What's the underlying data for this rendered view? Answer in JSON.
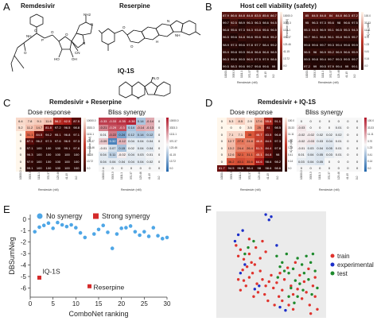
{
  "panels": {
    "A": {
      "letter": "A",
      "molecules": [
        "Remdesivir",
        "Reserpine",
        "IQ-1S"
      ],
      "atom_labels": {
        "O": "O",
        "N": "N",
        "NH": "NH",
        "NH2": "NH2",
        "P": "P",
        "HO": "HO",
        "OH": "OH",
        "CN": "CN",
        "O_": "O",
        "H": "H",
        "NO": "N,O"
      }
    },
    "B": {
      "letter": "B",
      "title": "Host cell viability (safety)",
      "xlabel": "Remdesivir (nM)",
      "ylabel_left": "Reserpine (nM)",
      "ylabel_right": "IQ-1S (nM)",
      "left_values": [
        [
          87.9,
          86.6,
          84.8,
          84.8,
          83.5,
          85.6,
          86.7
        ],
        [
          99.7,
          92.5,
          98.9,
          96.3,
          96.3,
          98.6,
          94.5
        ],
        [
          96.8,
          95.6,
          97.3,
          94.3,
          93.6,
          95.6,
          96.5
        ],
        [
          96.5,
          99.6,
          94.8,
          96.6,
          95.6,
          96.6,
          95.2
        ],
        [
          98.9,
          97.3,
          99.6,
          97.8,
          97.7,
          98.4,
          99.2
        ],
        [
          95.9,
          99.8,
          99.9,
          96.8,
          96.8,
          96.8,
          98.5
        ],
        [
          96.3,
          99.8,
          99.5,
          96.5,
          97.5,
          97.9,
          98.6
        ],
        [
          99.5,
          98.3,
          99.6,
          99.7,
          99.8,
          99.6,
          99.0
        ]
      ],
      "right_values": [
        [
          85.0,
          84.5,
          84.8,
          84.0,
          84.8,
          86.3,
          87.2
        ],
        [
          95.0,
          96.3,
          97.3,
          95.6,
          98.0,
          96.6,
          97.5
        ],
        [
          95.3,
          94.5,
          96.9,
          95.1,
          96.5,
          95.3,
          94.3
        ],
        [
          96.7,
          96.1,
          96.8,
          96.1,
          95.8,
          96.5,
          95.7
        ],
        [
          99.8,
          99.6,
          99.7,
          99.3,
          99.4,
          99.8,
          99.9
        ],
        [
          96.5,
          96.0,
          96.9,
          95.2,
          96.9,
          96.6,
          95.9
        ],
        [
          99.5,
          99.8,
          99.4,
          99.7,
          99.3,
          99.5,
          99.7
        ],
        [
          97.2,
          99.0,
          99.5,
          97.9,
          99.4,
          99.0,
          99.1
        ]
      ],
      "x_ticks": [
        "10000.0",
        "3333.3",
        "1111.1",
        "370.37",
        "123.46",
        "41.15",
        "0.0"
      ],
      "y_ticks_left": [
        "10000.0",
        "3333.3",
        "1111.1",
        "370.37",
        "123.46",
        "41.15",
        "13.72",
        "0.0"
      ],
      "y_ticks_right": [
        "100.0",
        "33.33",
        "11.11",
        "3.70",
        "1.23",
        "0.41",
        "0.14",
        "0.0"
      ]
    },
    "C": {
      "letter": "C",
      "title": "Remdesivir + Reserpine",
      "dose_label": "Dose response",
      "bliss_label": "Bliss synergy",
      "xlabel": "Remdesivir (nM)",
      "ylabel": "Reserpine (nM)",
      "dose_values": [
        [
          6.4,
          7.8,
          9.1,
          11.6,
          56.2,
          62.5,
          87.5
        ],
        [
          5.2,
          11.2,
          14.7,
          81.8,
          97.2,
          96.5,
          98.8
        ],
        [
          0.0,
          31.1,
          84.5,
          94.2,
          95.1,
          96.8,
          97.1
        ],
        [
          0.0,
          87.1,
          96.2,
          97.3,
          97.6,
          96.9,
          97.3
        ],
        [
          0.0,
          97.1,
          100,
          100,
          100,
          99.1,
          97.8
        ],
        [
          0.0,
          96.3,
          100,
          100,
          100,
          100,
          100
        ],
        [
          0.0,
          97.9,
          100,
          100,
          100,
          100,
          100
        ],
        [
          0.0,
          99.1,
          100,
          100,
          100,
          100,
          100
        ]
      ],
      "bliss_values": [
        [
          -0.33,
          -0.33,
          -0.35,
          -0.38,
          0.14,
          -0.14,
          0.0
        ],
        [
          -0.21,
          -0.29,
          -0.3,
          0.14,
          -0.14,
          -0.13,
          0.0
        ],
        [
          0.01,
          -0.22,
          0.24,
          0.12,
          0.14,
          0.12,
          0.0
        ],
        [
          -0.09,
          0.32,
          -0.12,
          0.04,
          0.04,
          0.04,
          0.0
        ],
        [
          -0.01,
          0.07,
          0.15,
          0.02,
          0.04,
          0.04,
          0.0
        ],
        [
          0.04,
          0.11,
          -0.02,
          0.04,
          0.03,
          0.01,
          0.0
        ],
        [
          0.04,
          0.04,
          0.04,
          0.04,
          0.04,
          0.02,
          0.0
        ],
        [
          0.0,
          0.0,
          0.0,
          0.0,
          0.0,
          0.0,
          0.0
        ]
      ]
    },
    "D": {
      "letter": "D",
      "title": "Remdesivir + IQ-1S",
      "dose_label": "Dose response",
      "bliss_label": "Bliss synergy",
      "xlabel": "Remdesivir (nM)",
      "ylabel": "IQ-1S (nM)",
      "dose_values": [
        [
          0.0,
          5.3,
          8.5,
          2.9,
          17.6,
          55.8,
          91.1
        ],
        [
          0.0,
          0.0,
          0.0,
          3.5,
          25.0,
          81.0,
          98.5
        ],
        [
          0.0,
          7.1,
          7.1,
          35.0,
          46.7,
          83.5,
          96.8
        ],
        [
          0.0,
          12.7,
          27.9,
          24.8,
          46.8,
          84.5,
          97.3
        ],
        [
          0.0,
          13.2,
          24.4,
          26.4,
          51.3,
          84.4,
          97.8
        ],
        [
          0.0,
          12.6,
          32.1,
          31.1,
          45.1,
          84.8,
          98.0
        ],
        [
          0.0,
          36.2,
          40.1,
          35.6,
          64.6,
          98.6,
          98.2
        ],
        [
          81.7,
          94.5,
          96.9,
          96.4,
          98.0,
          98.6,
          98.6
        ]
      ],
      "bliss_values": [
        [
          0.0,
          0.0,
          0.0,
          0.0,
          0.0,
          0.0,
          0.0
        ],
        [
          -0.03,
          0.0,
          0.0,
          0.0,
          0.01,
          0.0,
          0.0
        ],
        [
          -0.02,
          -0.02,
          0.02,
          0.02,
          0.02,
          0.0,
          0.0
        ],
        [
          -0.02,
          -0.03,
          0.03,
          0.04,
          0.01,
          0.0,
          0.0
        ],
        [
          -0.01,
          0.03,
          0.04,
          0.05,
          0.01,
          0.0,
          0.0
        ],
        [
          0.01,
          0.04,
          0.05,
          0.03,
          0.01,
          0.0,
          0.0
        ],
        [
          0.03,
          0.04,
          0.05,
          0.0,
          0.0,
          0.0,
          0.0
        ],
        [
          0.0,
          0.0,
          0.0,
          0.0,
          0.0,
          0.0,
          0.0
        ]
      ]
    },
    "E": {
      "letter": "E"
    },
    "F": {
      "letter": "F"
    }
  },
  "chart_data": [
    {
      "type": "scatter",
      "panel": "E",
      "xlabel": "ComboNet ranking",
      "ylabel": "DBSumNeg",
      "xlim": [
        0,
        30
      ],
      "ylim": [
        -6.8,
        0.4
      ],
      "x_ticks": [
        0,
        5,
        10,
        15,
        20,
        25,
        30
      ],
      "y_ticks": [
        0,
        -1,
        -2,
        -3,
        -4,
        -5,
        -6
      ],
      "legend": {
        "no_synergy": "No synergy",
        "strong_synergy": "Strong synergy",
        "placement": "top"
      },
      "colors": {
        "no_synergy": "#4ea6e6",
        "strong_synergy": "#d42a2a"
      },
      "series": [
        {
          "name": "No synergy",
          "points": [
            [
              1,
              -1.1
            ],
            [
              2,
              -0.7
            ],
            [
              3,
              -0.55
            ],
            [
              4,
              -0.35
            ],
            [
              5,
              -0.8
            ],
            [
              6,
              -0.3
            ],
            [
              7,
              -0.5
            ],
            [
              8,
              -0.65
            ],
            [
              9,
              -0.5
            ],
            [
              10,
              -0.75
            ],
            [
              11,
              -1.2
            ],
            [
              12,
              -1.6
            ],
            [
              14,
              -1.3
            ],
            [
              15,
              -0.9
            ],
            [
              16,
              -0.55
            ],
            [
              17,
              -1.15
            ],
            [
              18,
              -2.55
            ],
            [
              19,
              -1.3
            ],
            [
              20,
              -0.8
            ],
            [
              21,
              -0.75
            ],
            [
              22,
              -0.6
            ],
            [
              23,
              -1.1
            ],
            [
              24,
              -1.4
            ],
            [
              25,
              -1.1
            ],
            [
              26,
              -1.5
            ],
            [
              27,
              -0.75
            ],
            [
              28,
              -1.45
            ],
            [
              29,
              -1.7
            ],
            [
              30,
              -1.6
            ]
          ]
        },
        {
          "name": "Strong synergy",
          "points": [
            [
              2,
              -5.1
            ],
            [
              13,
              -5.85
            ]
          ],
          "labels": [
            "IQ-1S",
            "Reserpine"
          ]
        }
      ]
    },
    {
      "type": "scatter",
      "panel": "F",
      "legend": {
        "train": "train",
        "experimental": "experimental",
        "test": "test",
        "placement": "right"
      },
      "colors": {
        "train": "#e0332d",
        "experimental": "#1c2fc9",
        "test": "#1e8a2c"
      },
      "series": [
        {
          "name": "train",
          "points": [
            [
              0.18,
              0.68
            ],
            [
              0.2,
              0.58
            ],
            [
              0.22,
              0.64
            ],
            [
              0.25,
              0.55
            ],
            [
              0.3,
              0.6
            ],
            [
              0.32,
              0.52
            ],
            [
              0.28,
              0.48
            ],
            [
              0.24,
              0.45
            ],
            [
              0.35,
              0.5
            ],
            [
              0.33,
              0.42
            ],
            [
              0.4,
              0.44
            ],
            [
              0.42,
              0.36
            ],
            [
              0.37,
              0.32
            ],
            [
              0.3,
              0.38
            ],
            [
              0.27,
              0.3
            ],
            [
              0.25,
              0.35
            ],
            [
              0.45,
              0.3
            ],
            [
              0.5,
              0.4
            ],
            [
              0.48,
              0.34
            ],
            [
              0.52,
              0.28
            ],
            [
              0.55,
              0.33
            ],
            [
              0.6,
              0.26
            ],
            [
              0.62,
              0.36
            ],
            [
              0.58,
              0.42
            ],
            [
              0.65,
              0.47
            ],
            [
              0.68,
              0.3
            ],
            [
              0.7,
              0.22
            ],
            [
              0.74,
              0.27
            ],
            [
              0.78,
              0.18
            ],
            [
              0.82,
              0.24
            ],
            [
              0.85,
              0.12
            ],
            [
              0.8,
              0.34
            ],
            [
              0.88,
              0.3
            ],
            [
              0.9,
              0.2
            ],
            [
              0.76,
              0.4
            ],
            [
              0.72,
              0.52
            ],
            [
              0.84,
              0.46
            ],
            [
              0.9,
              0.38
            ],
            [
              0.6,
              0.16
            ],
            [
              0.66,
              0.12
            ],
            [
              0.57,
              0.2
            ],
            [
              0.44,
              0.22
            ],
            [
              0.38,
              0.24
            ],
            [
              0.34,
              0.2
            ],
            [
              0.47,
              0.16
            ],
            [
              0.53,
              0.12
            ],
            [
              0.4,
              0.56
            ],
            [
              0.45,
              0.62
            ],
            [
              0.36,
              0.66
            ],
            [
              0.42,
              0.72
            ],
            [
              0.3,
              0.74
            ],
            [
              0.86,
              0.04
            ],
            [
              0.92,
              0.08
            ],
            [
              0.7,
              0.08
            ],
            [
              0.2,
              0.36
            ],
            [
              0.22,
              0.26
            ]
          ]
        },
        {
          "name": "experimental",
          "points": [
            [
              0.45,
              0.97
            ],
            [
              0.48,
              0.92
            ],
            [
              0.5,
              0.95
            ],
            [
              0.2,
              0.78
            ],
            [
              0.24,
              0.82
            ],
            [
              0.17,
              0.72
            ],
            [
              0.58,
              0.1
            ],
            [
              0.63,
              0.07
            ],
            [
              0.35,
              0.27
            ],
            [
              0.39,
              0.3
            ],
            [
              0.55,
              0.68
            ],
            [
              0.26,
              0.5
            ],
            [
              0.22,
              0.42
            ]
          ]
        },
        {
          "name": "test",
          "points": [
            [
              0.55,
              0.58
            ],
            [
              0.6,
              0.52
            ],
            [
              0.64,
              0.6
            ],
            [
              0.66,
              0.42
            ],
            [
              0.7,
              0.46
            ],
            [
              0.74,
              0.56
            ],
            [
              0.78,
              0.5
            ],
            [
              0.72,
              0.35
            ],
            [
              0.76,
              0.32
            ],
            [
              0.8,
              0.42
            ],
            [
              0.84,
              0.36
            ],
            [
              0.86,
              0.52
            ],
            [
              0.88,
              0.6
            ],
            [
              0.82,
              0.58
            ],
            [
              0.68,
              0.28
            ],
            [
              0.74,
              0.2
            ],
            [
              0.79,
              0.26
            ],
            [
              0.62,
              0.44
            ],
            [
              0.58,
              0.48
            ],
            [
              0.9,
              0.44
            ],
            [
              0.56,
              0.38
            ],
            [
              0.92,
              0.28
            ],
            [
              0.87,
              0.22
            ],
            [
              0.66,
              0.2
            ],
            [
              0.71,
              0.14
            ],
            [
              0.34,
              0.72
            ],
            [
              0.29,
              0.66
            ],
            [
              0.26,
              0.6
            ]
          ]
        }
      ]
    }
  ]
}
